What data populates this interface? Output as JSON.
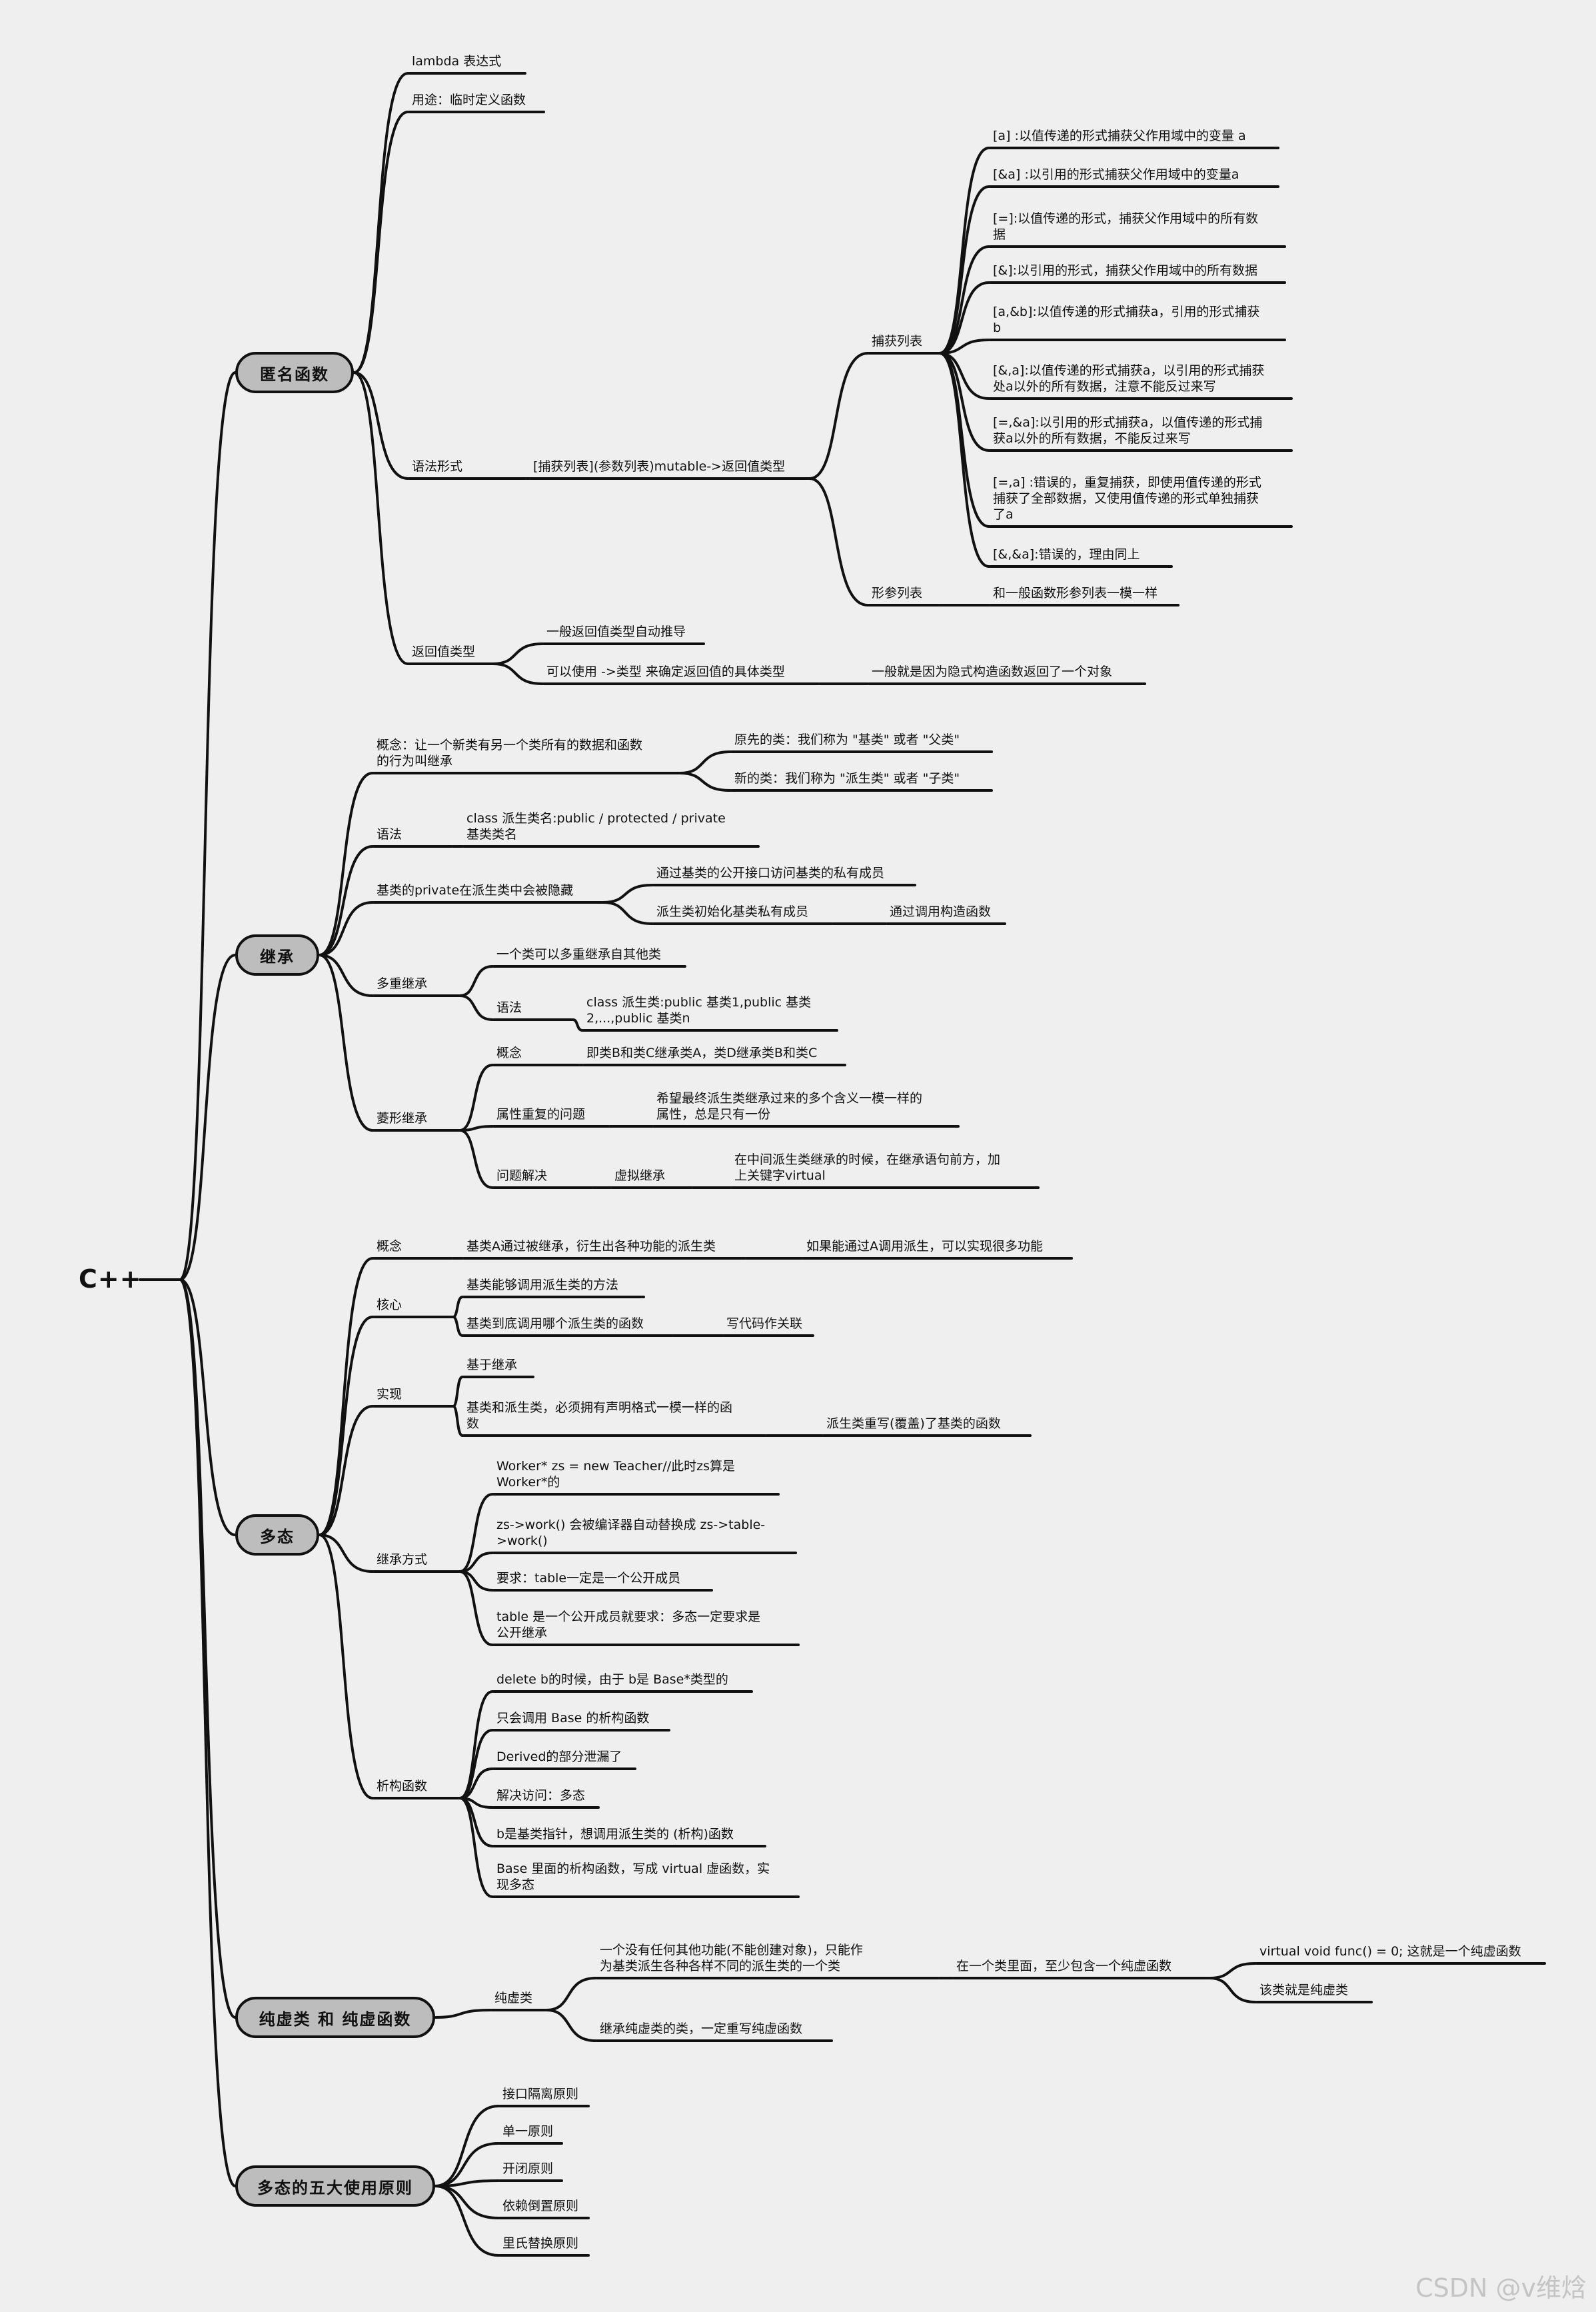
{
  "root": "C++",
  "branches": {
    "lambda": "匿名函数",
    "inherit": "继承",
    "poly": "多态",
    "pure": "纯虚类 和 纯虚函数",
    "principles": "多态的五大使用原则"
  },
  "nodes": {
    "lambda_title": "lambda 表达式",
    "lambda_use": "用途：临时定义函数",
    "lambda_syntax": "语法形式",
    "lambda_syntax_fmt": "[捕获列表](参数列表)mutable->返回值类型",
    "capture_list": "捕获列表",
    "cap_1": "[a] :以值传递的形式捕获父作用域中的变量 a",
    "cap_2": "[&a] :以引用的形式捕获父作用域中的变量a",
    "cap_3": "[=]:以值传递的形式，捕获父作用域中的所有数\n据",
    "cap_4": "[&]:以引用的形式，捕获父作用域中的所有数据",
    "cap_5": "[a,&b]:以值传递的形式捕获a，引用的形式捕获\nb",
    "cap_6": "[&,a]:以值传递的形式捕获a，以引用的形式捕获\n处a以外的所有数据，注意不能反过来写",
    "cap_7": "[=,&a]:以引用的形式捕获a，以值传递的形式捕\n获a以外的所有数据，不能反过来写",
    "cap_8": "[=,a] :错误的，重复捕获，即使用值传递的形式\n捕获了全部数据，又使用值传递的形式单独捕获\n了a",
    "cap_9": "[&,&a]:错误的，理由同上",
    "param_list": "形参列表",
    "param_desc": "和一般函数形参列表一模一样",
    "ret_type": "返回值类型",
    "ret_1": "一般返回值类型自动推导",
    "ret_2": "可以使用 ->类型 来确定返回值的具体类型",
    "ret_2_note": "一般就是因为隐式构造函数返回了一个对象",
    "inh_concept": "概念：让一个新类有另一个类所有的数据和函数\n的行为叫继承",
    "inh_base": "原先的类：我们称为 \"基类\" 或者 \"父类\"",
    "inh_derived": "新的类：我们称为 \"派生类\" 或者 \"子类\"",
    "inh_syntax": "语法",
    "inh_syntax_fmt": "class 派生类名:public / protected / private\n基类类名",
    "inh_private": "基类的private在派生类中会被隐藏",
    "inh_private_1": "通过基类的公开接口访问基类的私有成员",
    "inh_private_2": "派生类初始化基类私有成员",
    "inh_private_2b": "通过调用构造函数",
    "multi": "多重继承",
    "multi_1": "一个类可以多重继承自其他类",
    "multi_syntax": "语法",
    "multi_syntax_fmt": "class 派生类:public 基类1,public 基类\n2,...,public 基类n",
    "diamond": "菱形继承",
    "diamond_concept": "概念",
    "diamond_concept_desc": "即类B和类C继承类A，类D继承类B和类C",
    "diamond_problem": "属性重复的问题",
    "diamond_problem_desc": "希望最终派生类继承过来的多个含义一模一样的\n属性，总是只有一份",
    "diamond_solve": "问题解决",
    "virtual_inh": "虚拟继承",
    "virtual_inh_desc": "在中间派生类继承的时候，在继承语句前方，加\n上关键字virtual",
    "poly_concept": "概念",
    "poly_concept_1": "基类A通过被继承，衍生出各种功能的派生类",
    "poly_concept_2": "如果能通过A调用派生，可以实现很多功能",
    "core": "核心",
    "core_1": "基类能够调用派生类的方法",
    "core_2": "基类到底调用哪个派生类的函数",
    "core_2b": "写代码作关联",
    "impl": "实现",
    "impl_1": "基于继承",
    "impl_2": "基类和派生类，必须拥有声明格式一模一样的函\n数",
    "impl_2b": "派生类重写(覆盖)了基类的函数",
    "inh_way": "继承方式",
    "iw_1": "Worker* zs = new Teacher//此时zs算是\nWorker*的",
    "iw_2": "zs->work() 会被编译器自动替换成 zs->table-\n>work()",
    "iw_3": "要求：table一定是一个公开成员",
    "iw_4": "table 是一个公开成员就要求：多态一定要求是\n公开继承",
    "dtor": "析构函数",
    "dt_1": "delete b的时候，由于 b是 Base*类型的",
    "dt_2": "只会调用 Base 的析构函数",
    "dt_3": "Derived的部分泄漏了",
    "dt_4": "解决访问：多态",
    "dt_5": "b是基类指针，想调用派生类的 (析构)函数",
    "dt_6": "Base 里面的析构函数，写成 virtual 虚函数，实\n现多态",
    "pure_class": "纯虚类",
    "pure_1": "一个没有任何其他功能(不能创建对象)，只能作\n为基类派生各种各样不同的派生类的一个类",
    "pure_1b": "在一个类里面，至少包含一个纯虚函数",
    "pure_1c": "virtual void func() = 0; 这就是一个纯虚函数",
    "pure_1d": "该类就是纯虚类",
    "pure_2": "继承纯虚类的类，一定重写纯虚函数",
    "pr_1": "接口隔离原则",
    "pr_2": "单一原则",
    "pr_3": "开闭原则",
    "pr_4": "依赖倒置原则",
    "pr_5": "里氏替换原则"
  },
  "watermark": "CSDN @v维焓"
}
